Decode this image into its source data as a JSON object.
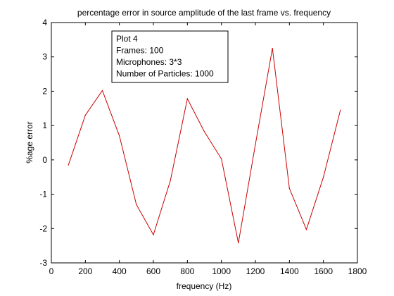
{
  "chart_data": {
    "type": "line",
    "title": "percentage error in source amplitude of the last frame vs. frequency",
    "xlabel": "frequency (Hz)",
    "ylabel": "%age error",
    "xlim": [
      0,
      1800
    ],
    "ylim": [
      -3,
      4
    ],
    "xticks": [
      0,
      200,
      400,
      600,
      800,
      1000,
      1200,
      1400,
      1600,
      1800
    ],
    "yticks": [
      -3,
      -2,
      -1,
      0,
      1,
      2,
      3,
      4
    ],
    "grid": false,
    "series": [
      {
        "color": "#cc0000",
        "x": [
          100,
          200,
          300,
          400,
          500,
          600,
          700,
          800,
          900,
          1000,
          1100,
          1200,
          1300,
          1400,
          1500,
          1600,
          1700
        ],
        "y": [
          -0.15,
          1.3,
          2.02,
          0.7,
          -1.3,
          -2.18,
          -0.6,
          1.78,
          0.82,
          0.03,
          -2.42,
          0.45,
          3.25,
          -0.83,
          -2.03,
          -0.5,
          1.45
        ]
      }
    ],
    "annotation": {
      "lines": [
        "Plot 4",
        "Frames: 100",
        "Microphones: 3*3",
        "Number of Particles: 1000"
      ]
    }
  }
}
